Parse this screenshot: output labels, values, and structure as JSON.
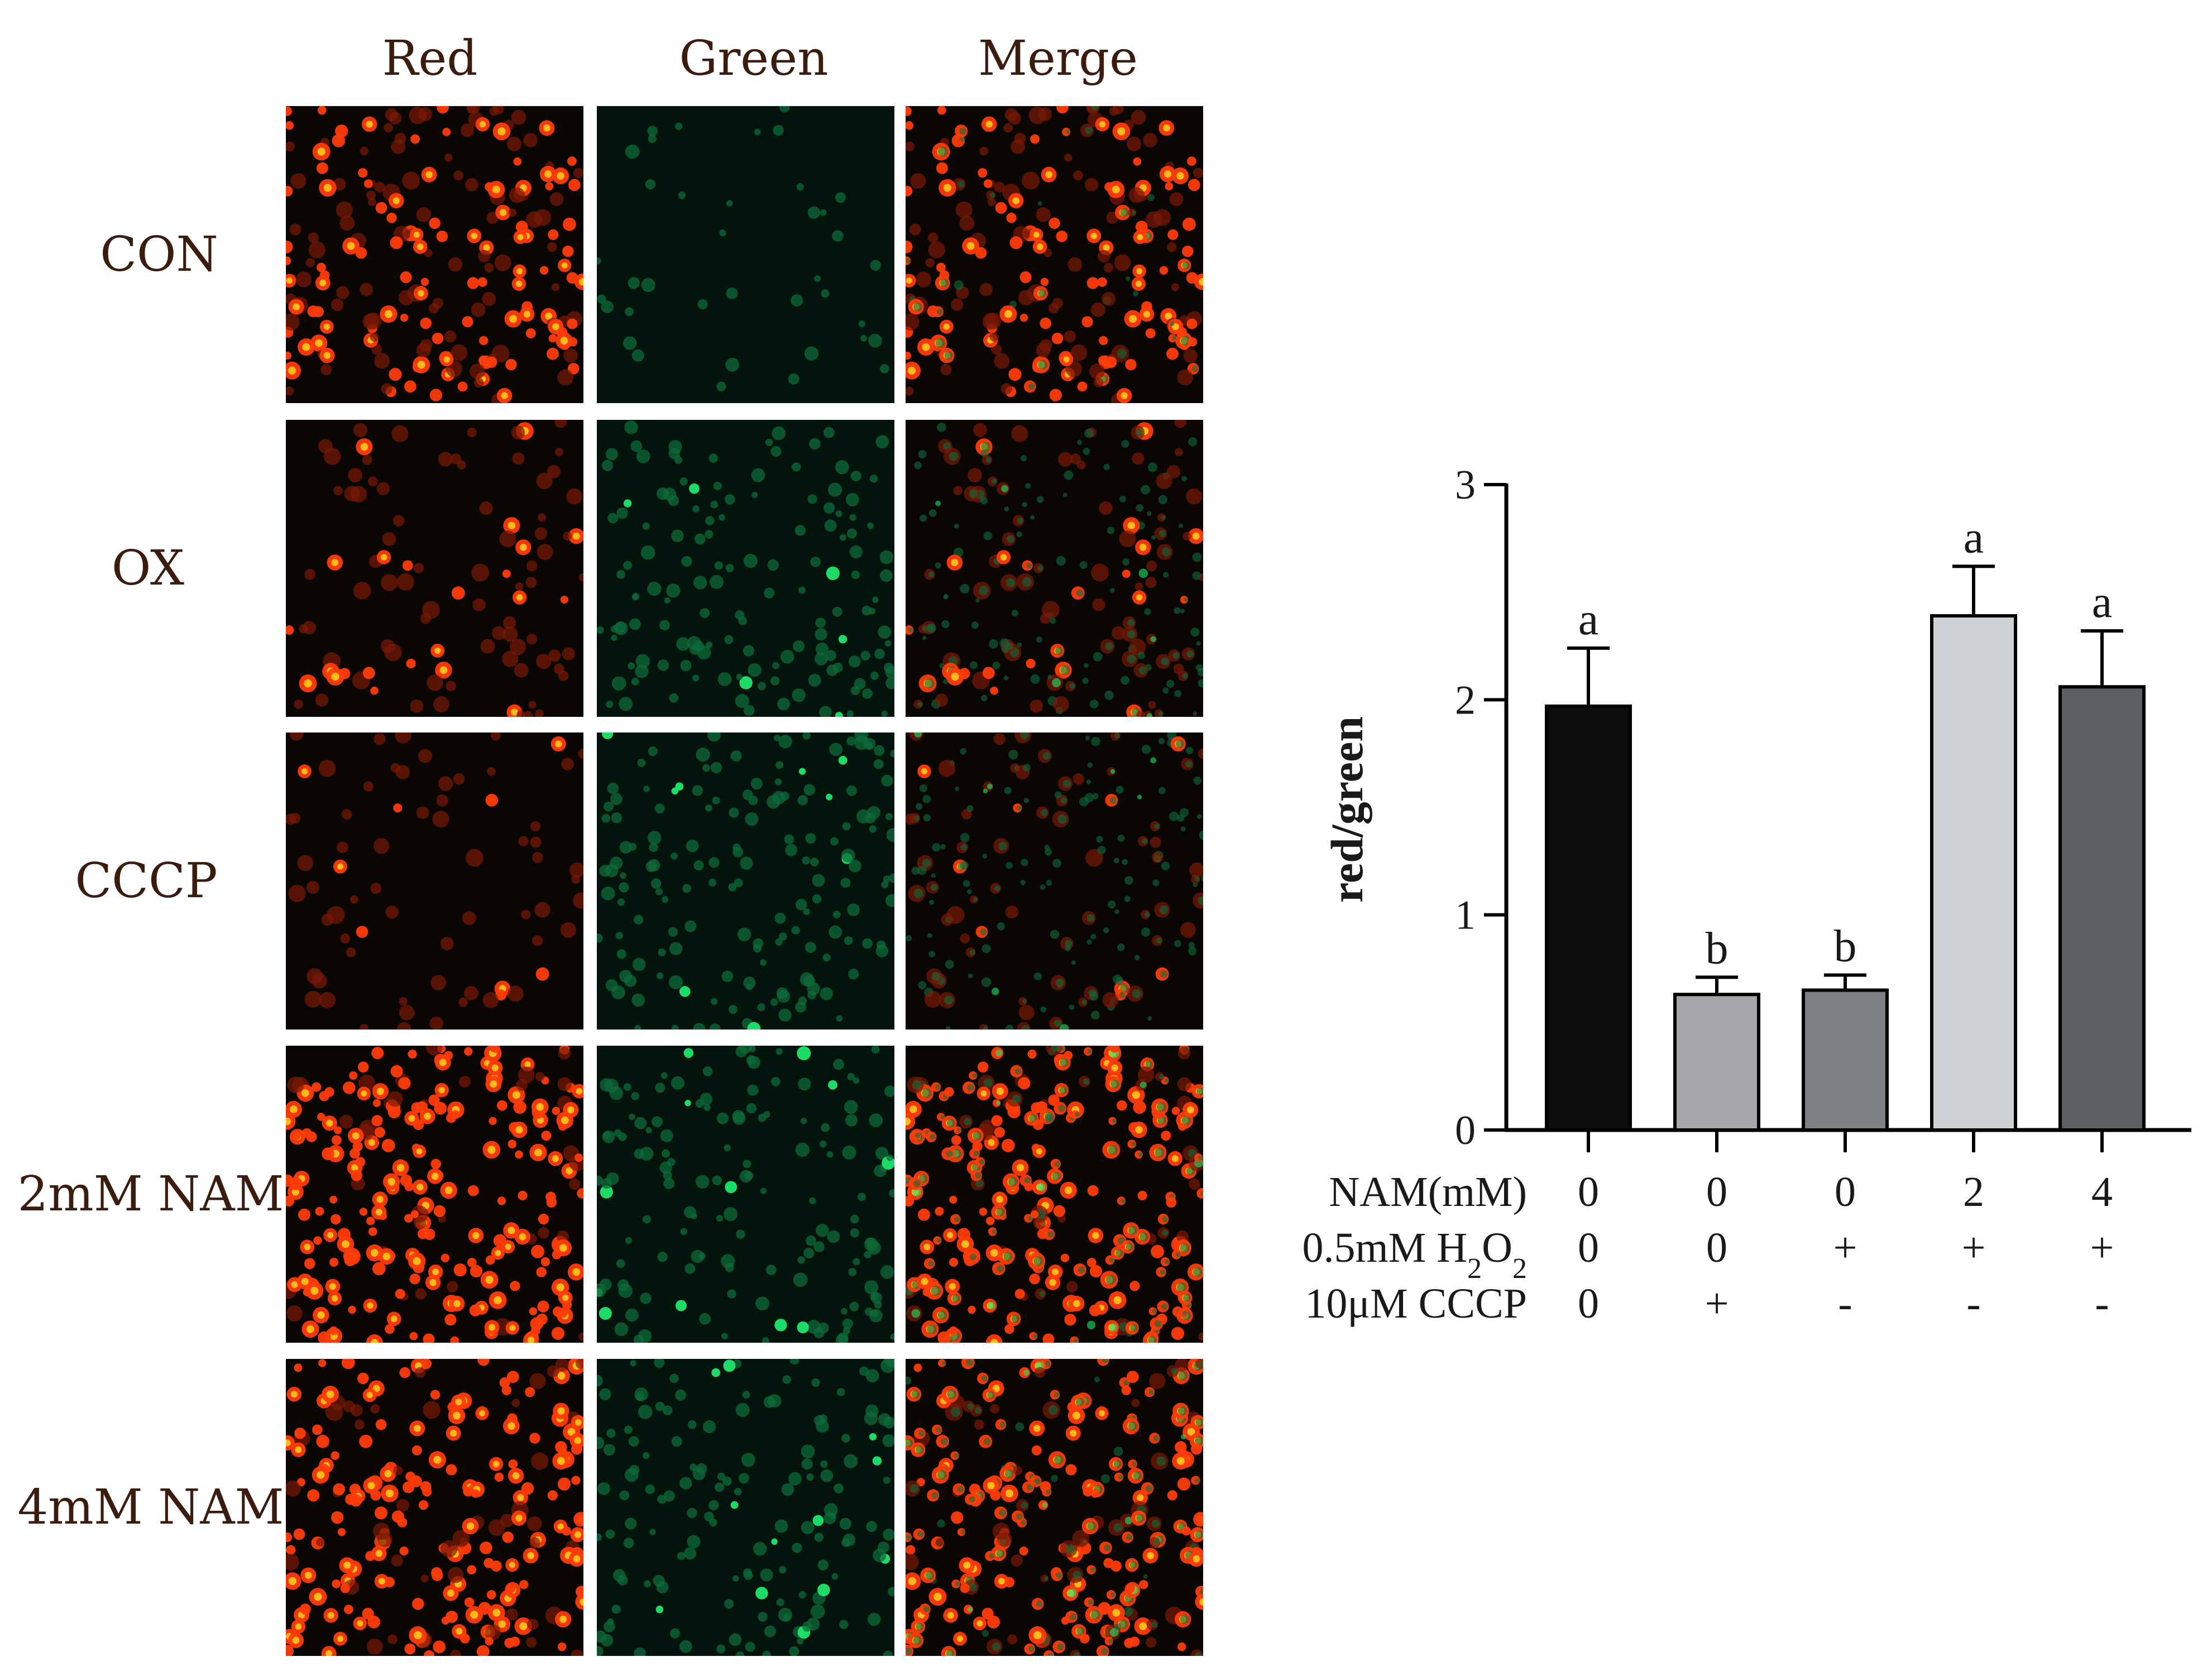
{
  "micrograph": {
    "columns": [
      "Red",
      "Green",
      "Merge"
    ],
    "rows": [
      "CON",
      "OX",
      "CCCP",
      "2mM NAM",
      "4mM NAM"
    ],
    "cell_density_by_row": [
      {
        "red": 0.8,
        "green": 0.15,
        "bright_red_fraction": 0.55
      },
      {
        "red": 0.35,
        "green": 0.55,
        "bright_red_fraction": 0.25
      },
      {
        "red": 0.25,
        "green": 0.55,
        "bright_red_fraction": 0.15
      },
      {
        "red": 0.95,
        "green": 0.55,
        "bright_red_fraction": 0.85
      },
      {
        "red": 0.9,
        "green": 0.55,
        "bright_red_fraction": 0.8
      }
    ],
    "colors": {
      "red_channel": "#ff3b0a",
      "red_highlight": "#ffd21a",
      "green_channel": "#1ee66b",
      "background": "#0a0604"
    }
  },
  "chart_data": {
    "type": "bar",
    "ylabel": "red/green",
    "ylim": [
      0,
      3
    ],
    "yticks": [
      "0",
      "1",
      "2",
      "3"
    ],
    "values": [
      1.97,
      0.63,
      0.65,
      2.39,
      2.06
    ],
    "errors": [
      0.27,
      0.08,
      0.07,
      0.23,
      0.26
    ],
    "significance": [
      "a",
      "b",
      "b",
      "a",
      "a"
    ],
    "bar_colors": [
      "#0d0d0d",
      "#a5a6aa",
      "#7d8184",
      "#cfd2d4",
      "#5b5f62"
    ],
    "conditions": [
      {
        "label": "NAM(mM)",
        "values": [
          "0",
          "0",
          "0",
          "2",
          "4"
        ]
      },
      {
        "label": "0.5mM H",
        "sub1": "2",
        "mid": "O",
        "sub2": "2",
        "values": [
          "0",
          "0",
          "+",
          "+",
          "+"
        ]
      },
      {
        "label": "10μM CCCP",
        "values": [
          "0",
          "+",
          "-",
          "-",
          "-"
        ]
      }
    ]
  }
}
